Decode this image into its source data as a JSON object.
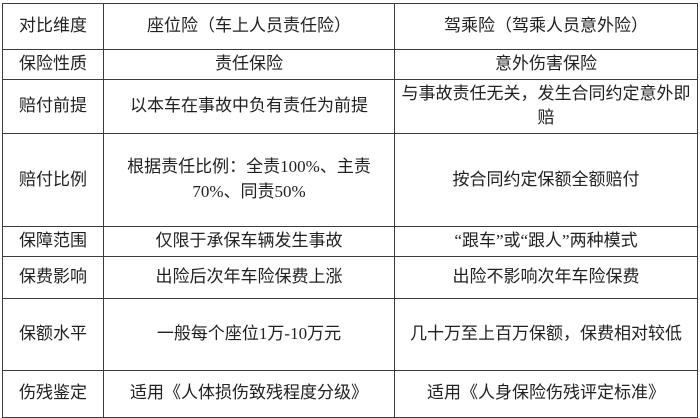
{
  "table": {
    "colors": {
      "border": "#3c3c3c",
      "text": "#212121",
      "background": "#ffffff"
    },
    "header": {
      "dimension": "对比维度",
      "seat": "座位险（车上人员责任险）",
      "drive": "驾乘险（驾乘人员意外险）"
    },
    "rows": [
      {
        "label": "保险性质",
        "seat": "责任保险",
        "drive": "意外伤害保险"
      },
      {
        "label": "赔付前提",
        "seat": "以本车在事故中负有责任为前提",
        "drive": "与事故责任无关，发生合同约定意外即赔"
      },
      {
        "label": "赔付比例",
        "seat": "根据责任比例：全责100%、主责70%、同责50%",
        "drive": "按合同约定保额全额赔付"
      },
      {
        "label": "保障范围",
        "seat": "仅限于承保车辆发生事故",
        "drive": "“跟车”或“跟人”两种模式"
      },
      {
        "label": "保费影响",
        "seat": "出险后次年车险保费上涨",
        "drive": "出险不影响次年车险保费"
      },
      {
        "label": "保额水平",
        "seat": "一般每个座位1万-10万元",
        "drive": "几十万至上百万保额，保费相对较低"
      },
      {
        "label": "伤残鉴定",
        "seat": "适用《人体损伤致残程度分级》",
        "drive": "适用《人身保险伤残评定标准》"
      }
    ]
  }
}
